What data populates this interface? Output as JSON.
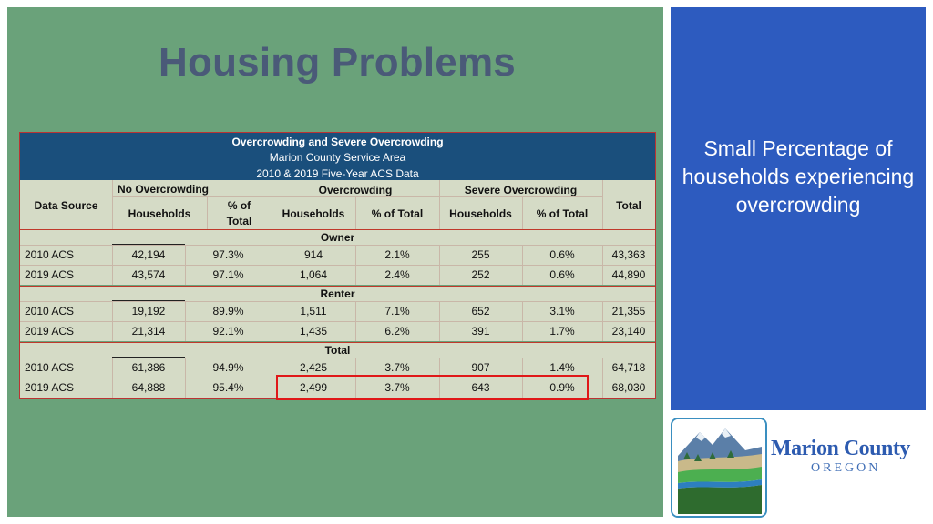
{
  "title": "Housing Problems",
  "side_panel": {
    "text": "Small Percentage of households experiencing overcrowding"
  },
  "table": {
    "header_title": "Overcrowding and Severe Overcrowding",
    "header_sub1": "Marion County Service Area",
    "header_sub2": "2010 & 2019 Five-Year ACS Data",
    "group_headers": {
      "data_source": "Data Source",
      "no_overcrowding": "No Overcrowding",
      "overcrowding": "Overcrowding",
      "severe_overcrowding": "Severe Overcrowding",
      "total": "Total"
    },
    "sub_headers": {
      "households": "Households",
      "pct_total_line1": "% of",
      "pct_total_line2": "Total",
      "pct_of_total": "% of Total"
    },
    "sections": [
      {
        "name": "Owner",
        "rows": [
          {
            "source": "2010 ACS",
            "no_hh": "42,194",
            "no_pct": "97.3%",
            "ov_hh": "914",
            "ov_pct": "2.1%",
            "sev_hh": "255",
            "sev_pct": "0.6%",
            "total": "43,363"
          },
          {
            "source": "2019 ACS",
            "no_hh": "43,574",
            "no_pct": "97.1%",
            "ov_hh": "1,064",
            "ov_pct": "2.4%",
            "sev_hh": "252",
            "sev_pct": "0.6%",
            "total": "44,890"
          }
        ]
      },
      {
        "name": "Renter",
        "rows": [
          {
            "source": "2010 ACS",
            "no_hh": "19,192",
            "no_pct": "89.9%",
            "ov_hh": "1,511",
            "ov_pct": "7.1%",
            "sev_hh": "652",
            "sev_pct": "3.1%",
            "total": "21,355"
          },
          {
            "source": "2019 ACS",
            "no_hh": "21,314",
            "no_pct": "92.1%",
            "ov_hh": "1,435",
            "ov_pct": "6.2%",
            "sev_hh": "391",
            "sev_pct": "1.7%",
            "total": "23,140"
          }
        ]
      },
      {
        "name": "Total",
        "rows": [
          {
            "source": "2010 ACS",
            "no_hh": "61,386",
            "no_pct": "94.9%",
            "ov_hh": "2,425",
            "ov_pct": "3.7%",
            "sev_hh": "907",
            "sev_pct": "1.4%",
            "total": "64,718"
          },
          {
            "source": "2019 ACS",
            "no_hh": "64,888",
            "no_pct": "95.4%",
            "ov_hh": "2,499",
            "ov_pct": "3.7%",
            "sev_hh": "643",
            "sev_pct": "0.9%",
            "total": "68,030"
          }
        ]
      }
    ]
  },
  "logo": {
    "line1": "Marion County",
    "line2": "OREGON"
  },
  "colors": {
    "green_bg": "#6aa27a",
    "blue_panel": "#2d5bbf",
    "header_band": "#1a4f7c",
    "highlight": "#e01818"
  }
}
